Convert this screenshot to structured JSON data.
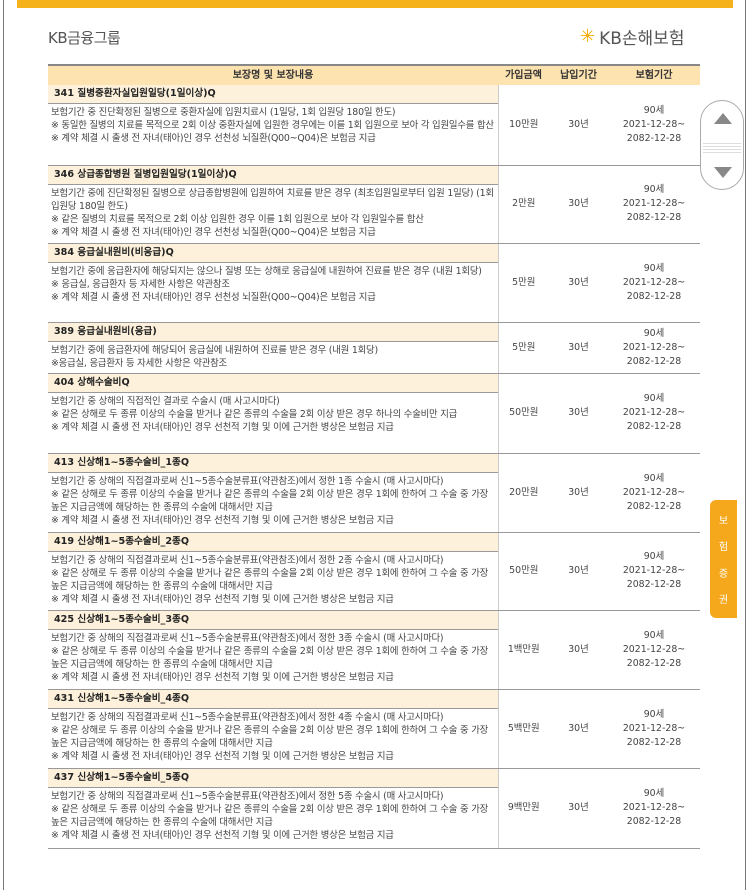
{
  "header": {
    "group": "KB금융그룹",
    "company": "KB손해보험"
  },
  "table": {
    "headers": [
      "보장명 및 보장내용",
      "가입금액",
      "납입기간",
      "보험기간"
    ],
    "rows": [
      {
        "title": "341  질병중환자실입원일당(1일이상)Q",
        "lines": [
          "보험기간 중 진단확정된 질병으로 중환자실에 입원치료시 (1일당, 1회 입원당 180일 한도)",
          "※ 동일한 질병의 치료를 목적으로 2회 이상 중환자실에 입원한 경우에는 이를 1회 입원으로 보아 각 입원일수를 합산",
          "※ 계약 체결 시 출생 전 자녀(태아)인 경우 선천성 뇌질환(Q00~Q04)은 보험금 지급"
        ],
        "amount": "10만원",
        "pay": "30년",
        "age": "90세",
        "start": "2021-12-28~",
        "end": "2082-12-28"
      },
      {
        "title": "346  상급종합병원 질병입원일당(1일이상)Q",
        "lines": [
          "보험기간 중에 진단확정된 질병으로 상급종합병원에 입원하여 치료를 받은 경우 (최초입원일로부터 입원 1일당) (1회 입원당 180일 한도)",
          "※ 같은 질병의 치료를 목적으로 2회 이상 입원한 경우 이를 1회 입원으로 보아 각 입원일수를 합산",
          "※ 계약 체결 시 출생 전 자녀(태아)인 경우 선천성 뇌질환(Q00~Q04)은 보험금 지급"
        ],
        "amount": "2만원",
        "pay": "30년",
        "age": "90세",
        "start": "2021-12-28~",
        "end": "2082-12-28"
      },
      {
        "title": "384  응급실내원비(비응급)Q",
        "lines": [
          "보험기간 중에 응급환자에 해당되지는 않으나 질병 또는 상해로 응급실에 내원하여 진료를 받은 경우 (내원 1회당)",
          "※ 응급실, 응급환자 등 자세한 사항은 약관참조",
          "※ 계약 체결 시 출생 전 자녀(태아)인 경우 선천성 뇌질환(Q00~Q04)은 보험금 지급"
        ],
        "amount": "5만원",
        "pay": "30년",
        "age": "90세",
        "start": "2021-12-28~",
        "end": "2082-12-28"
      },
      {
        "title": "389  응급실내원비(응급)",
        "lines": [
          "보험기간 중에 응급환자에 해당되어 응급실에 내원하여 진료를 받은 경우 (내원 1회당)",
          "※응급실, 응급환자 등 자세한 사항은 약관참조"
        ],
        "amount": "5만원",
        "pay": "30년",
        "age": "90세",
        "start": "2021-12-28~",
        "end": "2082-12-28"
      },
      {
        "title": "404  상해수술비Q",
        "lines": [
          "보험기간 중 상해의 직접적인 결과로 수술시 (매 사고시마다)",
          "※ 같은 상해로 두 종류 이상의 수술을 받거나 같은 종류의 수술을 2회 이상 받은 경우 하나의 수술비만 지급",
          "※ 계약 체결 시 출생 전 자녀(태아)인 경우 선천적 기형 및 이에 근거한 병상은 보험금 지급"
        ],
        "amount": "50만원",
        "pay": "30년",
        "age": "90세",
        "start": "2021-12-28~",
        "end": "2082-12-28"
      },
      {
        "title": "413  신상해1~5종수술비_1종Q",
        "lines": [
          "보험기간 중 상해의 직접결과로써 신1~5종수술분류표(약관참조)에서 정한 1종 수술시 (매 사고시마다)",
          "※ 같은 상해로 두 종류 이상의 수술을 받거나 같은 종류의 수술을 2회 이상 받은 경우 1회에 한하여 그 수술 중 가장 높은 지급금액에 해당하는 한 종류의 수술에 대해서만 지급",
          "※ 계약 체결 시 출생 전 자녀(태아)인 경우 선천적 기형 및 이에 근거한 병상은 보험금 지급"
        ],
        "amount": "20만원",
        "pay": "30년",
        "age": "90세",
        "start": "2021-12-28~",
        "end": "2082-12-28"
      },
      {
        "title": "419  신상해1~5종수술비_2종Q",
        "lines": [
          "보험기간 중 상해의 직접결과로써 신1~5종수술분류표(약관참조)에서 정한 2종 수술시 (매 사고시마다)",
          "※ 같은 상해로 두 종류 이상의 수술을 받거나 같은 종류의 수술을 2회 이상 받은 경우 1회에 한하여 그 수술 중 가장 높은 지급금액에 해당하는 한 종류의 수술에 대해서만 지급",
          "※ 계약 체결 시 출생 전 자녀(태아)인 경우 선천적 기형 및 이에 근거한 병상은 보험금 지급"
        ],
        "amount": "50만원",
        "pay": "30년",
        "age": "90세",
        "start": "2021-12-28~",
        "end": "2082-12-28"
      },
      {
        "title": "425  신상해1~5종수술비_3종Q",
        "lines": [
          "보험기간 중 상해의 직접결과로써 신1~5종수술분류표(약관참조)에서 정한 3종 수술시 (매 사고시마다)",
          "※ 같은 상해로 두 종류 이상의 수술을 받거나 같은 종류의 수술을 2회 이상 받은 경우 1회에 한하여 그 수술 중 가장 높은 지급금액에 해당하는 한 종류의 수술에 대해서만 지급",
          "※ 계약 체결 시 출생 전 자녀(태아)인 경우 선천적 기형 및 이에 근거한 병상은 보험금 지급"
        ],
        "amount": "1백만원",
        "pay": "30년",
        "age": "90세",
        "start": "2021-12-28~",
        "end": "2082-12-28"
      },
      {
        "title": "431  신상해1~5종수술비_4종Q",
        "lines": [
          "보험기간 중 상해의 직접결과로써 신1~5종수술분류표(약관참조)에서 정한 4종 수술시 (매 사고시마다)",
          "※ 같은 상해로 두 종류 이상의 수술을 받거나 같은 종류의 수술을 2회 이상 받은 경우 1회에 한하여 그 수술 중 가장 높은 지급금액에 해당하는 한 종류의 수술에 대해서만 지급",
          "※ 계약 체결 시 출생 전 자녀(태아)인 경우 선천적 기형 및 이에 근거한 병상은 보험금 지급"
        ],
        "amount": "5백만원",
        "pay": "30년",
        "age": "90세",
        "start": "2021-12-28~",
        "end": "2082-12-28"
      },
      {
        "title": "437  신상해1~5종수술비_5종Q",
        "lines": [
          "보험기간 중 상해의 직접결과로써 신1~5종수술분류표(약관참조)에서 정한 5종 수술시 (매 사고시마다)",
          "※ 같은 상해로 두 종류 이상의 수술을 받거나 같은 종류의 수술을 2회 이상 받은 경우 1회에 한하여 그 수술 중 가장 높은 지급금액에 해당하는 한 종류의 수술에 대해서만 지급",
          "※ 계약 체결 시 출생 전 자녀(태아)인 경우 선천적 기형 및 이에 근거한 병상은 보험금 지급"
        ],
        "amount": "9백만원",
        "pay": "30년",
        "age": "90세",
        "start": "2021-12-28~",
        "end": "2082-12-28"
      }
    ]
  },
  "side_tab": [
    "보",
    "험",
    "증",
    "권"
  ],
  "colors": {
    "accent": "#f5b21b",
    "header_bg": "#fde3b0",
    "title_bg": "#fdf1dc"
  }
}
